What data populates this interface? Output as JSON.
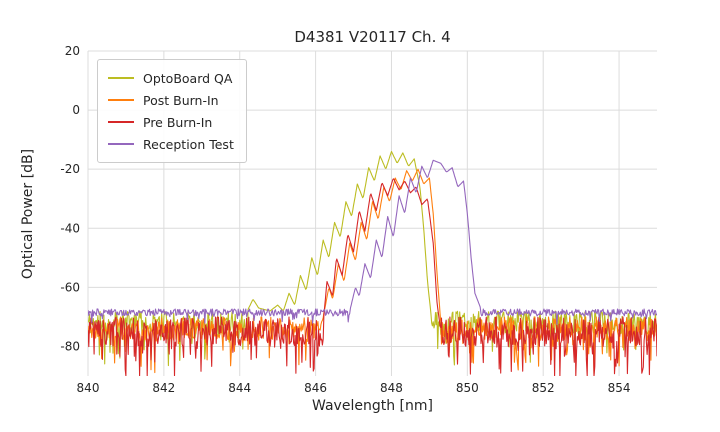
{
  "chart_data": {
    "type": "line",
    "title": "D4381 V20117 Ch. 4",
    "xlabel": "Wavelength [nm]",
    "ylabel": "Optical Power [dB]",
    "xlim": [
      840,
      855
    ],
    "ylim": [
      -90,
      20
    ],
    "xticks": [
      840,
      842,
      844,
      846,
      848,
      850,
      852,
      854
    ],
    "yticks": [
      20,
      0,
      -20,
      -40,
      -60,
      -80
    ],
    "grid": true,
    "grid_color": "#dcdcdc",
    "text_color": "#262626",
    "legend_position": "upper left",
    "series": [
      {
        "name": "OptoBoard QA",
        "color": "#bcbd22",
        "seed": 11,
        "noise": {
          "floor": -72,
          "jitter": 4,
          "spike_prob": 0.12,
          "spike_depth": 12
        },
        "modes": [
          [
            844.2,
            -68
          ],
          [
            844.35,
            -64
          ],
          [
            844.5,
            -67
          ],
          [
            844.8,
            -68
          ],
          [
            845.0,
            -66
          ],
          [
            845.15,
            -68
          ],
          [
            845.3,
            -62
          ],
          [
            845.45,
            -66
          ],
          [
            845.6,
            -56
          ],
          [
            845.75,
            -61
          ],
          [
            845.9,
            -50
          ],
          [
            846.05,
            -56
          ],
          [
            846.2,
            -44
          ],
          [
            846.35,
            -50
          ],
          [
            846.5,
            -38
          ],
          [
            846.65,
            -43
          ],
          [
            846.8,
            -31
          ],
          [
            846.95,
            -36
          ],
          [
            847.1,
            -25
          ],
          [
            847.25,
            -30
          ],
          [
            847.4,
            -19.5
          ],
          [
            847.55,
            -24
          ],
          [
            847.7,
            -15.5
          ],
          [
            847.85,
            -20
          ],
          [
            848.0,
            -14
          ],
          [
            848.15,
            -18
          ],
          [
            848.3,
            -14.5
          ],
          [
            848.45,
            -19
          ],
          [
            848.6,
            -16.5
          ],
          [
            848.75,
            -26
          ],
          [
            848.85,
            -40
          ],
          [
            848.95,
            -58
          ],
          [
            849.05,
            -70
          ]
        ]
      },
      {
        "name": "Post Burn-In",
        "color": "#ff7f0e",
        "seed": 22,
        "noise": {
          "floor": -74,
          "jitter": 4,
          "spike_prob": 0.15,
          "spike_depth": 12
        },
        "modes": [
          [
            846.2,
            -70
          ],
          [
            846.35,
            -60
          ],
          [
            846.45,
            -64
          ],
          [
            846.6,
            -52
          ],
          [
            846.75,
            -58
          ],
          [
            846.9,
            -45
          ],
          [
            847.05,
            -51
          ],
          [
            847.2,
            -38
          ],
          [
            847.35,
            -44
          ],
          [
            847.5,
            -31
          ],
          [
            847.65,
            -37
          ],
          [
            847.8,
            -26
          ],
          [
            847.95,
            -31
          ],
          [
            848.1,
            -23
          ],
          [
            848.25,
            -27
          ],
          [
            848.4,
            -20.5
          ],
          [
            848.55,
            -24
          ],
          [
            848.7,
            -20
          ],
          [
            848.85,
            -25
          ],
          [
            849.0,
            -23
          ],
          [
            849.1,
            -35
          ],
          [
            849.2,
            -55
          ],
          [
            849.3,
            -72
          ]
        ]
      },
      {
        "name": "Pre Burn-In",
        "color": "#d62728",
        "seed": 33,
        "noise": {
          "floor": -75,
          "jitter": 5,
          "spike_prob": 0.2,
          "spike_depth": 14
        },
        "modes": [
          [
            846.2,
            -72
          ],
          [
            846.3,
            -58
          ],
          [
            846.45,
            -63
          ],
          [
            846.55,
            -50
          ],
          [
            846.7,
            -56
          ],
          [
            846.85,
            -42
          ],
          [
            847.0,
            -48
          ],
          [
            847.15,
            -34
          ],
          [
            847.3,
            -41
          ],
          [
            847.45,
            -28
          ],
          [
            847.6,
            -34
          ],
          [
            847.75,
            -24.5
          ],
          [
            847.9,
            -29
          ],
          [
            848.05,
            -23
          ],
          [
            848.2,
            -27
          ],
          [
            848.35,
            -24
          ],
          [
            848.5,
            -28
          ],
          [
            848.65,
            -26
          ],
          [
            848.8,
            -32
          ],
          [
            848.95,
            -30
          ],
          [
            849.1,
            -45
          ],
          [
            849.2,
            -65
          ],
          [
            849.3,
            -75
          ]
        ]
      },
      {
        "name": "Reception Test",
        "color": "#9467bd",
        "seed": 44,
        "noise": {
          "floor": -68.5,
          "jitter": 1.2,
          "spike_prob": 0.05,
          "spike_depth": 3
        },
        "modes": [
          [
            846.9,
            -68
          ],
          [
            847.05,
            -60
          ],
          [
            847.15,
            -63
          ],
          [
            847.3,
            -52
          ],
          [
            847.45,
            -57
          ],
          [
            847.6,
            -44
          ],
          [
            847.75,
            -50
          ],
          [
            847.9,
            -36
          ],
          [
            848.05,
            -43
          ],
          [
            848.2,
            -29
          ],
          [
            848.35,
            -35
          ],
          [
            848.5,
            -23
          ],
          [
            848.65,
            -28
          ],
          [
            848.8,
            -19
          ],
          [
            848.95,
            -23
          ],
          [
            849.1,
            -17
          ],
          [
            849.3,
            -18
          ],
          [
            849.45,
            -21
          ],
          [
            849.6,
            -19.5
          ],
          [
            849.75,
            -26
          ],
          [
            849.9,
            -24
          ],
          [
            850.0,
            -35
          ],
          [
            850.1,
            -50
          ],
          [
            850.2,
            -62
          ],
          [
            850.35,
            -67
          ]
        ]
      }
    ]
  }
}
